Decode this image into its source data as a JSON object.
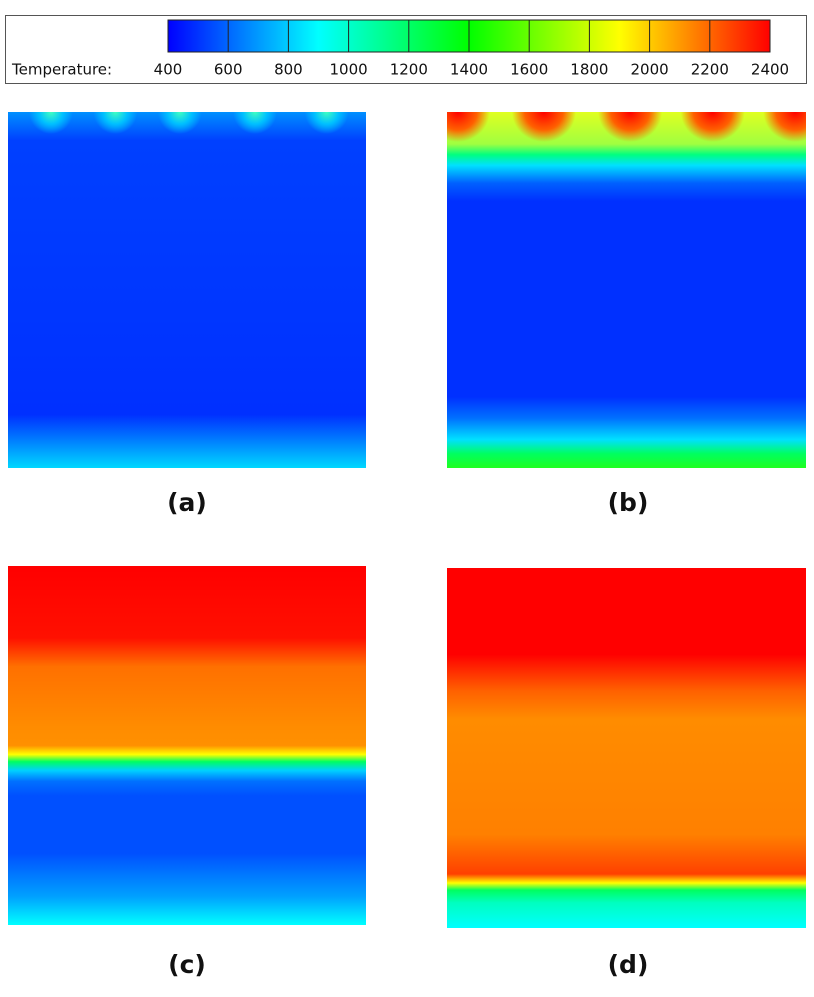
{
  "colorbar": {
    "label": "Temperature:",
    "range": [
      400,
      2400
    ],
    "ticks": [
      400,
      600,
      800,
      1000,
      1200,
      1400,
      1600,
      1800,
      2000,
      2200,
      2400
    ]
  },
  "panels": [
    {
      "label": "(a)"
    },
    {
      "label": "(b)"
    },
    {
      "label": "(c)"
    },
    {
      "label": "(d)"
    }
  ]
}
